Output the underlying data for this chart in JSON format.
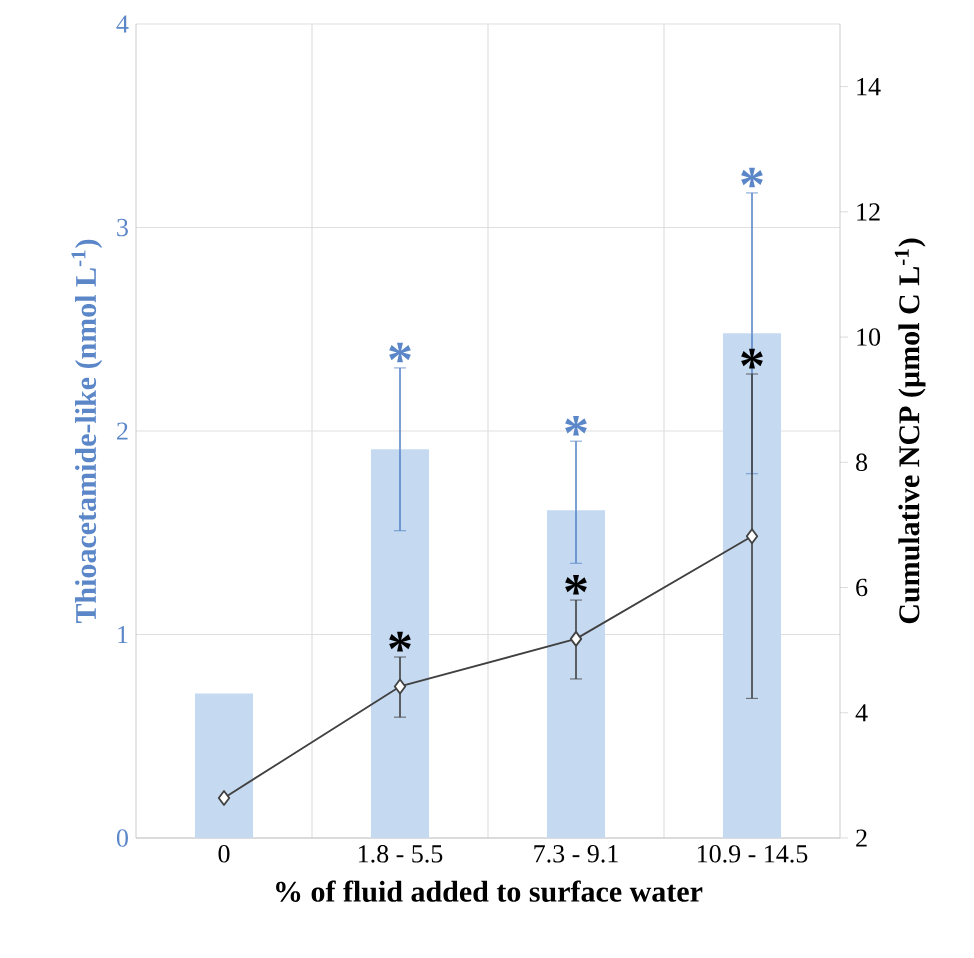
{
  "chart_data": {
    "type": "bar",
    "categories": [
      "0",
      "1.8 - 5.5",
      "7.3 - 9.1",
      "10.9 - 14.5"
    ],
    "xlabel": "% of fluid added to surface water",
    "ylabel": "Thioacetamide-like (nmol L$^{-1}$)",
    "y2label": "Cumulative NCP (µmol C L$^{-1}$)",
    "ylim": [
      0,
      4
    ],
    "yticks": [
      0,
      1,
      2,
      3,
      4
    ],
    "y2lim": [
      2,
      15
    ],
    "y2ticks": [
      2,
      4,
      6,
      8,
      10,
      12,
      14
    ],
    "grid": true,
    "series": [
      {
        "color": "#c5d9f1",
        "values": [
          0.71,
          1.91,
          1.61,
          2.48
        ],
        "errors": [
          null,
          [
            1.51,
            2.31
          ],
          [
            1.35,
            1.95
          ],
          [
            1.79,
            3.17
          ]
        ]
      },
      {
        "type": "line",
        "axis": "y2",
        "color": "#404040",
        "marker": "diamond",
        "line_style": "solid",
        "values": [
          2.64,
          4.42,
          5.18,
          6.82
        ],
        "errors": [
          null,
          [
            3.93,
            4.89
          ],
          [
            4.54,
            5.8
          ],
          [
            4.23,
            9.41
          ]
        ]
      }
    ],
    "annotations": [
      "*",
      "*",
      "*",
      "*",
      "*",
      "*"
    ]
  }
}
